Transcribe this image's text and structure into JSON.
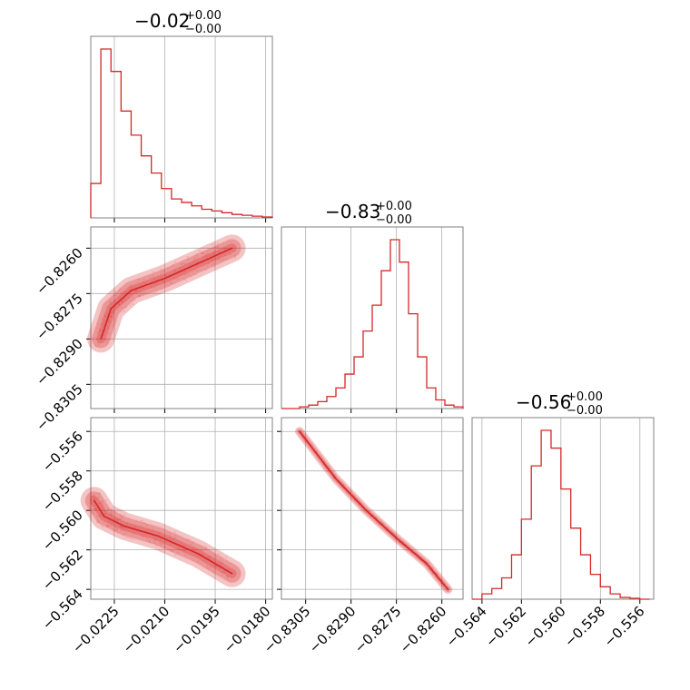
{
  "figure": {
    "kind": "corner-plot",
    "line_color": "#d62728",
    "fill_color": "#d62728",
    "grid": true
  },
  "parameters": [
    {
      "median": "−0.02",
      "plus": "+0.00",
      "minus": "−0.00",
      "range": [
        -0.0232,
        -0.0178
      ]
    },
    {
      "median": "−0.83",
      "plus": "+0.00",
      "minus": "−0.00",
      "range": [
        -0.8313,
        -0.8253
      ]
    },
    {
      "median": "−0.56",
      "plus": "+0.00",
      "minus": "−0.00",
      "range": [
        -0.5645,
        -0.5553
      ]
    }
  ],
  "ticks": [
    {
      "values": [
        -0.0225,
        -0.021,
        -0.0195,
        -0.018
      ],
      "labels": [
        "−0.0225",
        "−0.0210",
        "−0.0195",
        "−0.0180"
      ]
    },
    {
      "values": [
        -0.8305,
        -0.829,
        -0.8275,
        -0.826
      ],
      "labels": [
        "−0.8305",
        "−0.8290",
        "−0.8275",
        "−0.8260"
      ]
    },
    {
      "values": [
        -0.564,
        -0.562,
        -0.56,
        -0.558,
        -0.556
      ],
      "labels": [
        "−0.564",
        "−0.562",
        "−0.560",
        "−0.558",
        "−0.556"
      ]
    }
  ],
  "chart_data": [
    {
      "type": "histogram",
      "parameter": 0,
      "bin_edges": [
        -0.0232,
        -0.0229,
        -0.0226,
        -0.0223,
        -0.022,
        -0.0217,
        -0.0214,
        -0.0211,
        -0.0208,
        -0.0205,
        -0.0202,
        -0.0199,
        -0.0196,
        -0.0193,
        -0.019,
        -0.0187,
        -0.0184,
        -0.0181,
        -0.0178
      ],
      "counts": [
        0.2,
        0.98,
        0.85,
        0.62,
        0.48,
        0.36,
        0.26,
        0.17,
        0.11,
        0.09,
        0.07,
        0.05,
        0.04,
        0.03,
        0.02,
        0.015,
        0.01,
        0.005
      ]
    },
    {
      "type": "histogram",
      "parameter": 1,
      "bin_edges": [
        -0.8313,
        -0.831,
        -0.8307,
        -0.8304,
        -0.8301,
        -0.8298,
        -0.8295,
        -0.8292,
        -0.8289,
        -0.8286,
        -0.8283,
        -0.828,
        -0.8277,
        -0.8274,
        -0.8271,
        -0.8268,
        -0.8265,
        -0.8262,
        -0.8259,
        -0.8256,
        -0.8253
      ],
      "counts": [
        0.0,
        0.0,
        0.01,
        0.02,
        0.04,
        0.07,
        0.12,
        0.2,
        0.3,
        0.45,
        0.6,
        0.8,
        0.98,
        0.85,
        0.55,
        0.3,
        0.12,
        0.05,
        0.02,
        0.01
      ]
    },
    {
      "type": "histogram",
      "parameter": 2,
      "bin_edges": [
        -0.5645,
        -0.564,
        -0.5635,
        -0.563,
        -0.5625,
        -0.562,
        -0.5615,
        -0.561,
        -0.5605,
        -0.56,
        -0.5595,
        -0.559,
        -0.5585,
        -0.558,
        -0.5575,
        -0.557,
        -0.5565,
        -0.556,
        -0.5555
      ],
      "counts": [
        0.0,
        0.03,
        0.06,
        0.12,
        0.25,
        0.45,
        0.75,
        0.95,
        0.85,
        0.62,
        0.4,
        0.25,
        0.14,
        0.07,
        0.03,
        0.01,
        0.005,
        0.0
      ]
    },
    {
      "type": "contour",
      "x_parameter": 0,
      "y_parameter": 1,
      "mode_curve": [
        [
          -0.0229,
          -0.829
        ],
        [
          -0.0226,
          -0.828
        ],
        [
          -0.022,
          -0.8274
        ],
        [
          -0.021,
          -0.827
        ],
        [
          -0.02,
          -0.8265
        ],
        [
          -0.019,
          -0.826
        ]
      ]
    },
    {
      "type": "contour",
      "x_parameter": 0,
      "y_parameter": 2,
      "mode_curve": [
        [
          -0.0231,
          -0.5595
        ],
        [
          -0.0228,
          -0.5603
        ],
        [
          -0.0222,
          -0.5608
        ],
        [
          -0.0212,
          -0.5613
        ],
        [
          -0.02,
          -0.5622
        ],
        [
          -0.019,
          -0.5632
        ]
      ]
    },
    {
      "type": "contour",
      "x_parameter": 1,
      "y_parameter": 2,
      "mode_curve": [
        [
          -0.8307,
          -0.556
        ],
        [
          -0.8295,
          -0.5584
        ],
        [
          -0.8285,
          -0.56
        ],
        [
          -0.8275,
          -0.5614
        ],
        [
          -0.8265,
          -0.5627
        ],
        [
          -0.8258,
          -0.564
        ]
      ]
    }
  ]
}
